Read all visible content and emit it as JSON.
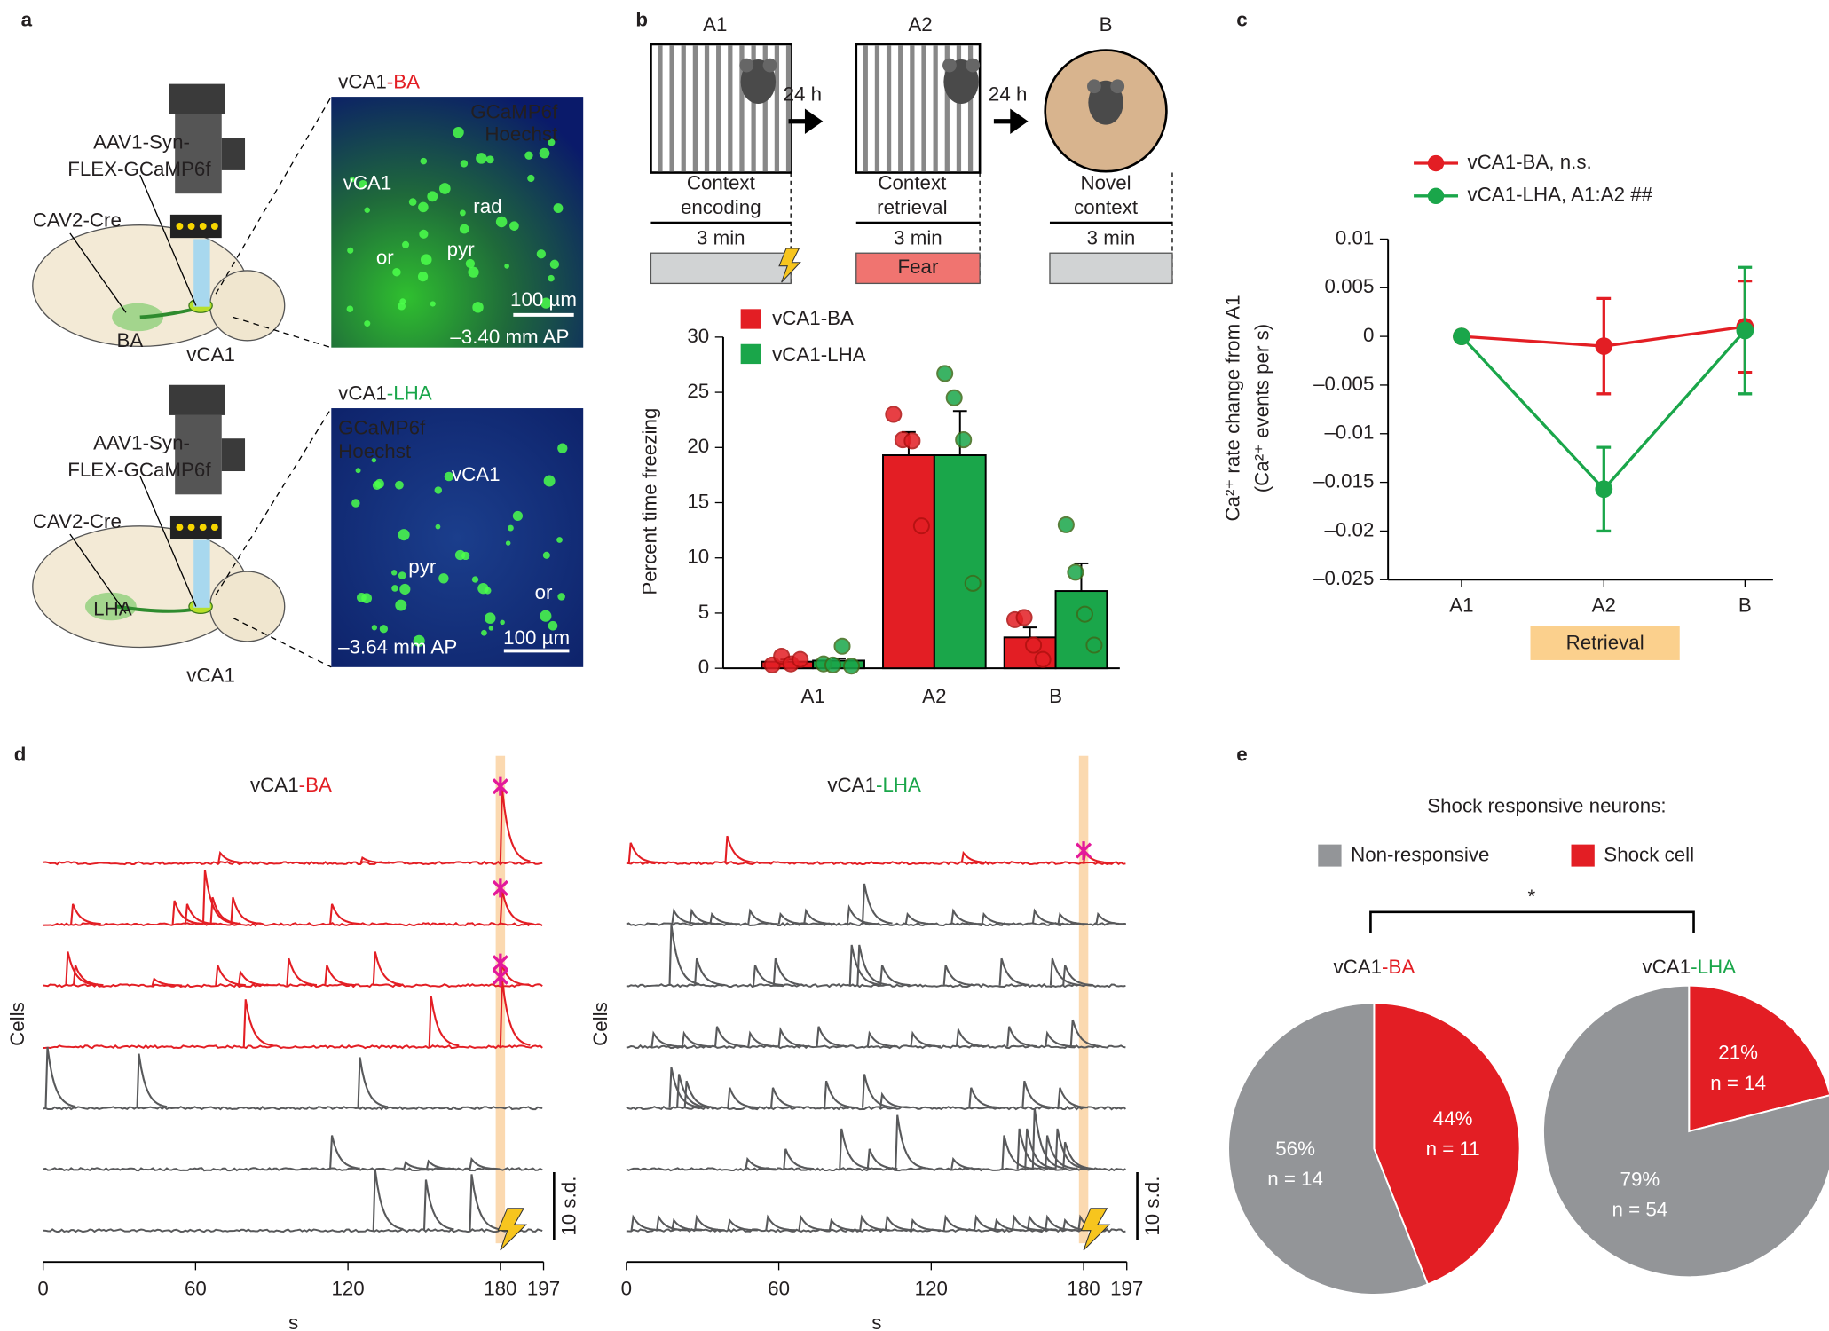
{
  "panels": {
    "a": "a",
    "b": "b",
    "c": "c",
    "d": "d",
    "e": "e"
  },
  "panel_a": {
    "views": [
      {
        "title_parts": [
          "vCA1",
          "-BA"
        ],
        "stains": [
          "GCaMP6f",
          "Hoechst"
        ],
        "regions": [
          "vCA1",
          "rad",
          "or",
          "pyr"
        ],
        "scale_bar": "100 µm",
        "ap": "–3.40 mm AP",
        "virus": [
          "AAV1-Syn-",
          "FLEX-GCaMP6f"
        ],
        "retro": "CAV2-Cre",
        "target": "BA",
        "site": "vCA1"
      },
      {
        "title_parts": [
          "vCA1",
          "-LHA"
        ],
        "stains": [
          "GCaMP6f",
          "Hoechst"
        ],
        "regions": [
          "vCA1",
          "pyr",
          "or"
        ],
        "scale_bar": "100 µm",
        "ap": "–3.64 mm AP",
        "virus": [
          "AAV1-Syn-",
          "FLEX-GCaMP6f"
        ],
        "retro": "CAV2-Cre",
        "target": "LHA",
        "site": "vCA1"
      }
    ]
  },
  "panel_b_schedule": {
    "contexts": [
      "A1",
      "A2",
      "B"
    ],
    "intervals": [
      "24 h",
      "24 h"
    ],
    "descriptions": [
      [
        "Context",
        "encoding"
      ],
      [
        "Context",
        "retrieval"
      ],
      [
        "Novel",
        "context"
      ]
    ],
    "durations": [
      "3 min",
      "3 min",
      "3 min"
    ],
    "fear": "Fear"
  },
  "chart_data": [
    {
      "type": "bar",
      "ylabel": "Percent time freezing",
      "categories": [
        "A1",
        "A2",
        "B"
      ],
      "ylim": [
        0,
        30
      ],
      "yticks": [
        0,
        5,
        10,
        15,
        20,
        25,
        30
      ],
      "series": [
        {
          "name": "vCA1-BA",
          "color": "#e31e24",
          "values": [
            0.6,
            19.3,
            2.8
          ],
          "errors": [
            0.2,
            2.1,
            0.9
          ],
          "points": [
            [
              0.3,
              1.1,
              0.4,
              0.8
            ],
            [
              23.0,
              20.7,
              20.6,
              12.9
            ],
            [
              4.4,
              4.6,
              2.1,
              0.8
            ]
          ]
        },
        {
          "name": "vCA1-LHA",
          "color": "#1aa64a",
          "values": [
            0.7,
            19.3,
            7.0
          ],
          "errors": [
            0.2,
            4.0,
            2.5
          ],
          "points": [
            [
              0.4,
              0.3,
              2.0,
              0.2
            ],
            [
              26.7,
              24.5,
              20.7,
              7.7
            ],
            [
              13.0,
              8.7,
              4.9,
              2.1
            ]
          ]
        }
      ]
    },
    {
      "type": "line",
      "ylabel": [
        "Ca²⁺ rate change from A1",
        "(Ca²⁺ events per s)"
      ],
      "categories": [
        "A1",
        "A2",
        "B"
      ],
      "annotation": "Retrieval",
      "ylim": [
        -0.025,
        0.01
      ],
      "yticks": [
        {
          "value": -0.025,
          "label": "–0.025"
        },
        {
          "value": -0.02,
          "label": "–0.02"
        },
        {
          "value": -0.015,
          "label": "–0.015"
        },
        {
          "value": -0.01,
          "label": "–0.01"
        },
        {
          "value": -0.005,
          "label": "–0.005"
        },
        0,
        0.005,
        0.01
      ],
      "series": [
        {
          "name": "vCA1-BA, n.s.",
          "color": "#e31e24",
          "values": [
            0,
            -0.001,
            0.001
          ],
          "errors": [
            0,
            0.0049,
            0.0047
          ]
        },
        {
          "name": "vCA1-LHA, A1:A2 ##",
          "color": "#1aa64a",
          "values": [
            0,
            -0.0157,
            0.0006
          ],
          "errors": [
            0,
            0.0043,
            0.0065
          ]
        }
      ]
    },
    {
      "type": "trace",
      "title_parts": [
        "vCA1",
        "-BA"
      ],
      "title_color": "#e31e24",
      "xlabel": "s",
      "ylabel": "Cells",
      "xlim": [
        0,
        197
      ],
      "xticks": [
        0,
        60,
        120,
        180,
        197
      ],
      "shock_time": 180,
      "scale_bar": {
        "value": 10,
        "label": "10 s.d."
      },
      "series": [
        {
          "color": "#e31e24",
          "x": [
            69,
            125,
            180
          ],
          "values": [
            1.5,
            0.8,
            11
          ]
        },
        {
          "color": "#e31e24",
          "x": [
            11,
            51,
            56,
            63,
            66,
            74,
            113,
            180
          ],
          "values": [
            3,
            3.5,
            3,
            8,
            4,
            4,
            3,
            5
          ]
        },
        {
          "color": "#e31e24",
          "x": [
            9,
            12,
            43,
            68,
            77,
            96,
            111,
            130,
            180
          ],
          "values": [
            5,
            3,
            1,
            3,
            2,
            4,
            3,
            5,
            3
          ]
        },
        {
          "color": "#e31e24",
          "x": [
            79,
            152,
            180
          ],
          "values": [
            7,
            7.5,
            10
          ]
        },
        {
          "color": "#58595b",
          "x": [
            1,
            37,
            124
          ],
          "values": [
            9,
            8,
            7.5
          ]
        },
        {
          "color": "#58595b",
          "x": [
            113,
            142,
            151,
            168
          ],
          "values": [
            5,
            1,
            1.2,
            1.5
          ]
        },
        {
          "color": "#58595b",
          "x": [
            130,
            150,
            168
          ],
          "values": [
            9,
            7.5,
            8.3
          ]
        }
      ]
    },
    {
      "type": "trace",
      "title_parts": [
        "vCA1",
        "-LHA"
      ],
      "title_color": "#1aa64a",
      "xlabel": "s",
      "ylabel": "Cells",
      "xlim": [
        0,
        197
      ],
      "xticks": [
        0,
        60,
        120,
        180,
        197
      ],
      "shock_time": 180,
      "scale_bar": {
        "value": 10,
        "label": "10 s.d."
      },
      "series": [
        {
          "color": "#e31e24",
          "x": [
            1,
            39,
            132,
            180
          ],
          "values": [
            3,
            4,
            1.5,
            1.5
          ]
        },
        {
          "color": "#58595b",
          "x": [
            18,
            25,
            33,
            48,
            60,
            70,
            87,
            93,
            110,
            128,
            140,
            160,
            170,
            185
          ],
          "values": [
            2,
            2,
            1.5,
            2,
            1.5,
            2,
            2.5,
            6,
            1.5,
            2,
            1.5,
            2,
            1.5,
            1.5
          ]
        },
        {
          "color": "#58595b",
          "x": [
            17,
            27,
            50,
            58,
            88,
            91,
            100,
            125,
            147,
            167,
            172
          ],
          "values": [
            9,
            4,
            3,
            4,
            6,
            6,
            3,
            3,
            4,
            4,
            3
          ]
        },
        {
          "color": "#58595b",
          "x": [
            10,
            22,
            35,
            48,
            60,
            75,
            95,
            112,
            130,
            150,
            165,
            175
          ],
          "values": [
            2,
            2,
            3,
            2,
            2.5,
            3,
            2,
            2,
            2.5,
            3,
            2,
            4
          ]
        },
        {
          "color": "#58595b",
          "x": [
            17,
            20,
            23,
            40,
            57,
            78,
            93,
            100,
            135,
            156,
            170
          ],
          "values": [
            6,
            5,
            4,
            3,
            3,
            4,
            5,
            2,
            3,
            4,
            3
          ]
        },
        {
          "color": "#58595b",
          "x": [
            47,
            62,
            84,
            95,
            106,
            128,
            148,
            154,
            157,
            160,
            165,
            169,
            172
          ],
          "values": [
            1.5,
            3,
            6,
            3,
            8,
            1.5,
            5,
            6,
            6,
            9,
            5,
            6,
            4
          ]
        },
        {
          "color": "#58595b",
          "x": [
            2,
            12,
            18,
            27,
            40,
            55,
            68,
            80,
            92,
            102,
            112,
            125,
            137,
            145,
            152,
            158,
            165,
            172,
            178
          ],
          "values": [
            2,
            2,
            1.5,
            2,
            1.5,
            2,
            2,
            1.5,
            2,
            2,
            1.5,
            2,
            2,
            1.5,
            2,
            2,
            2,
            1.5,
            2
          ]
        }
      ]
    },
    {
      "type": "pie",
      "title_parts": [
        "vCA1",
        "-BA"
      ],
      "title_color": "#e31e24",
      "categories": [
        "Non-responsive",
        "Shock cell"
      ],
      "colors": [
        "#939598",
        "#e31e24"
      ],
      "values": [
        56,
        44
      ],
      "value_labels": [
        "56%",
        "44%"
      ],
      "counts": [
        14,
        11
      ],
      "count_labels": [
        "n = 14",
        "n = 11"
      ]
    },
    {
      "type": "pie",
      "title_parts": [
        "vCA1",
        "-LHA"
      ],
      "title_color": "#1aa64a",
      "categories": [
        "Non-responsive",
        "Shock cell"
      ],
      "colors": [
        "#939598",
        "#e31e24"
      ],
      "values": [
        79,
        21
      ],
      "value_labels": [
        "79%",
        "21%"
      ],
      "counts": [
        54,
        14
      ],
      "count_labels": [
        "n = 54",
        "n = 14"
      ]
    }
  ],
  "panel_e": {
    "title": "Shock responsive neurons:",
    "significance": "*"
  }
}
